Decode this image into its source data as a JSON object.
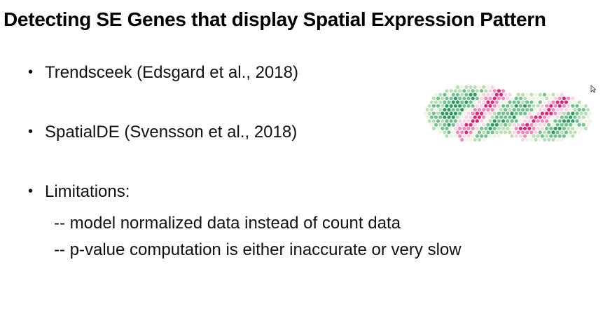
{
  "slide": {
    "title": "Detecting SE Genes that display Spatial Expression Pattern",
    "bullets": [
      {
        "marker": "•",
        "text": "Trendsceek (Edsgard et al., 2018)"
      },
      {
        "marker": "•",
        "text": "SpatialDE (Svensson et al., 2018)"
      },
      {
        "marker": "•",
        "text": "Limitations:"
      }
    ],
    "sub_items": [
      "-- model normalized data instead of count data",
      "-- p-value computation is either inaccurate or very slow"
    ]
  },
  "image": {
    "icon": "spatial-expression-tissue-image",
    "colors": {
      "high": "#e0247a",
      "mid_pink": "#f08ab8",
      "light_pink": "#f9d3e4",
      "pale": "#eef5e4",
      "light_green": "#b9dfb4",
      "mid_green": "#6fc28f",
      "dark_green": "#2e9a62"
    }
  }
}
